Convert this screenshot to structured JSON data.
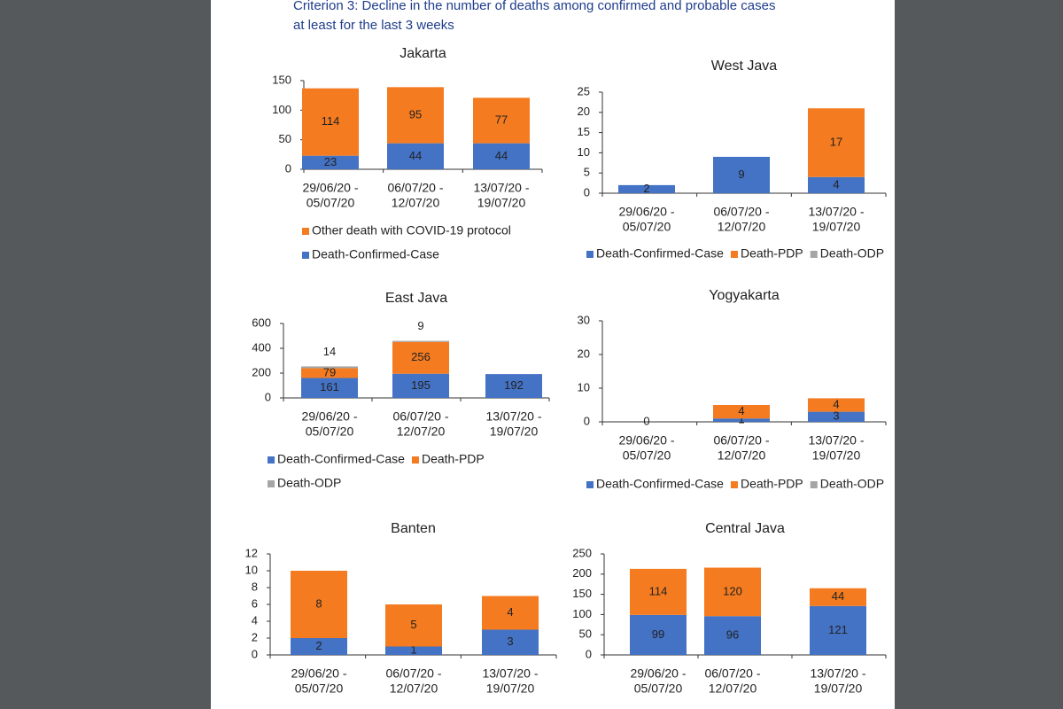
{
  "heading": [
    "Criterion 3: Decline in the number of deaths among confirmed and probable cases",
    "at least for the last 3 weeks"
  ],
  "chart_data": [
    {
      "type": "bar",
      "stacked": true,
      "title": "Jakarta",
      "categories": [
        [
          "29/06/20 -",
          "05/07/20"
        ],
        [
          "06/07/20 -",
          "12/07/20"
        ],
        [
          "13/07/20 -",
          "19/07/20"
        ]
      ],
      "series": [
        {
          "name": "Death-Confirmed-Case",
          "color": "#4472c4",
          "values": [
            23,
            44,
            44
          ]
        },
        {
          "name": "Other death with COVID-19 protocol",
          "color": "#f47b20",
          "values": [
            114,
            95,
            77
          ]
        }
      ],
      "ylim": [
        0,
        150
      ],
      "yticks": [
        0,
        50,
        100,
        150
      ]
    },
    {
      "type": "bar",
      "stacked": true,
      "title": "West Java",
      "categories": [
        [
          "29/06/20 -",
          "05/07/20"
        ],
        [
          "06/07/20 -",
          "12/07/20"
        ],
        [
          "13/07/20 -",
          "19/07/20"
        ]
      ],
      "series": [
        {
          "name": "Death-Confirmed-Case",
          "color": "#4472c4",
          "values": [
            2,
            9,
            4
          ]
        },
        {
          "name": "Death-PDP",
          "color": "#f47b20",
          "values": [
            null,
            null,
            17
          ]
        },
        {
          "name": "Death-ODP",
          "color": "#a5a5a5",
          "values": [
            null,
            null,
            null
          ]
        }
      ],
      "ylim": [
        0,
        25
      ],
      "yticks": [
        0,
        5,
        10,
        15,
        20,
        25
      ]
    },
    {
      "type": "bar",
      "stacked": true,
      "title": "East Java",
      "categories": [
        [
          "29/06/20 -",
          "05/07/20"
        ],
        [
          "06/07/20 -",
          "12/07/20"
        ],
        [
          "13/07/20 -",
          "19/07/20"
        ]
      ],
      "series": [
        {
          "name": "Death-Confirmed-Case",
          "color": "#4472c4",
          "values": [
            161,
            195,
            192
          ]
        },
        {
          "name": "Death-PDP",
          "color": "#f47b20",
          "values": [
            79,
            256,
            null
          ]
        },
        {
          "name": "Death-ODP",
          "color": "#a5a5a5",
          "values": [
            14,
            9,
            null
          ]
        }
      ],
      "ylim": [
        0,
        600
      ],
      "yticks": [
        0,
        200,
        400,
        600
      ]
    },
    {
      "type": "bar",
      "stacked": true,
      "title": "Yogyakarta",
      "categories": [
        [
          "29/06/20 -",
          "05/07/20"
        ],
        [
          "06/07/20 -",
          "12/07/20"
        ],
        [
          "13/07/20 -",
          "19/07/20"
        ]
      ],
      "series": [
        {
          "name": "Death-Confirmed-Case",
          "color": "#4472c4",
          "values": [
            0,
            1,
            3
          ]
        },
        {
          "name": "Death-PDP",
          "color": "#f47b20",
          "values": [
            null,
            4,
            4
          ]
        },
        {
          "name": "Death-ODP",
          "color": "#a5a5a5",
          "values": [
            null,
            null,
            null
          ]
        }
      ],
      "ylim": [
        0,
        30
      ],
      "yticks": [
        0,
        10,
        20,
        30
      ]
    },
    {
      "type": "bar",
      "stacked": true,
      "title": "Banten",
      "categories": [
        [
          "29/06/20 -",
          "05/07/20"
        ],
        [
          "06/07/20 -",
          "12/07/20"
        ],
        [
          "13/07/20 -",
          "19/07/20"
        ]
      ],
      "series": [
        {
          "name": "Death-Confirmed-Case",
          "color": "#4472c4",
          "values": [
            2,
            1,
            3
          ]
        },
        {
          "name": "Death-PDP",
          "color": "#f47b20",
          "values": [
            8,
            5,
            4
          ]
        }
      ],
      "ylim": [
        0,
        12
      ],
      "yticks": [
        0,
        2,
        4,
        6,
        8,
        10,
        12
      ]
    },
    {
      "type": "bar",
      "stacked": true,
      "title": "Central Java",
      "categories": [
        [
          "29/06/20 -",
          "05/07/20"
        ],
        [
          "06/07/20 -",
          "12/07/20"
        ],
        [
          "13/07/20 -",
          "19/07/20"
        ]
      ],
      "series": [
        {
          "name": "Death-Confirmed-Case",
          "color": "#4472c4",
          "values": [
            99,
            96,
            121
          ]
        },
        {
          "name": "Death-PDP",
          "color": "#f47b20",
          "values": [
            114,
            120,
            44
          ]
        }
      ],
      "ylim": [
        0,
        250
      ],
      "yticks": [
        0,
        50,
        100,
        150,
        200,
        250
      ]
    }
  ]
}
